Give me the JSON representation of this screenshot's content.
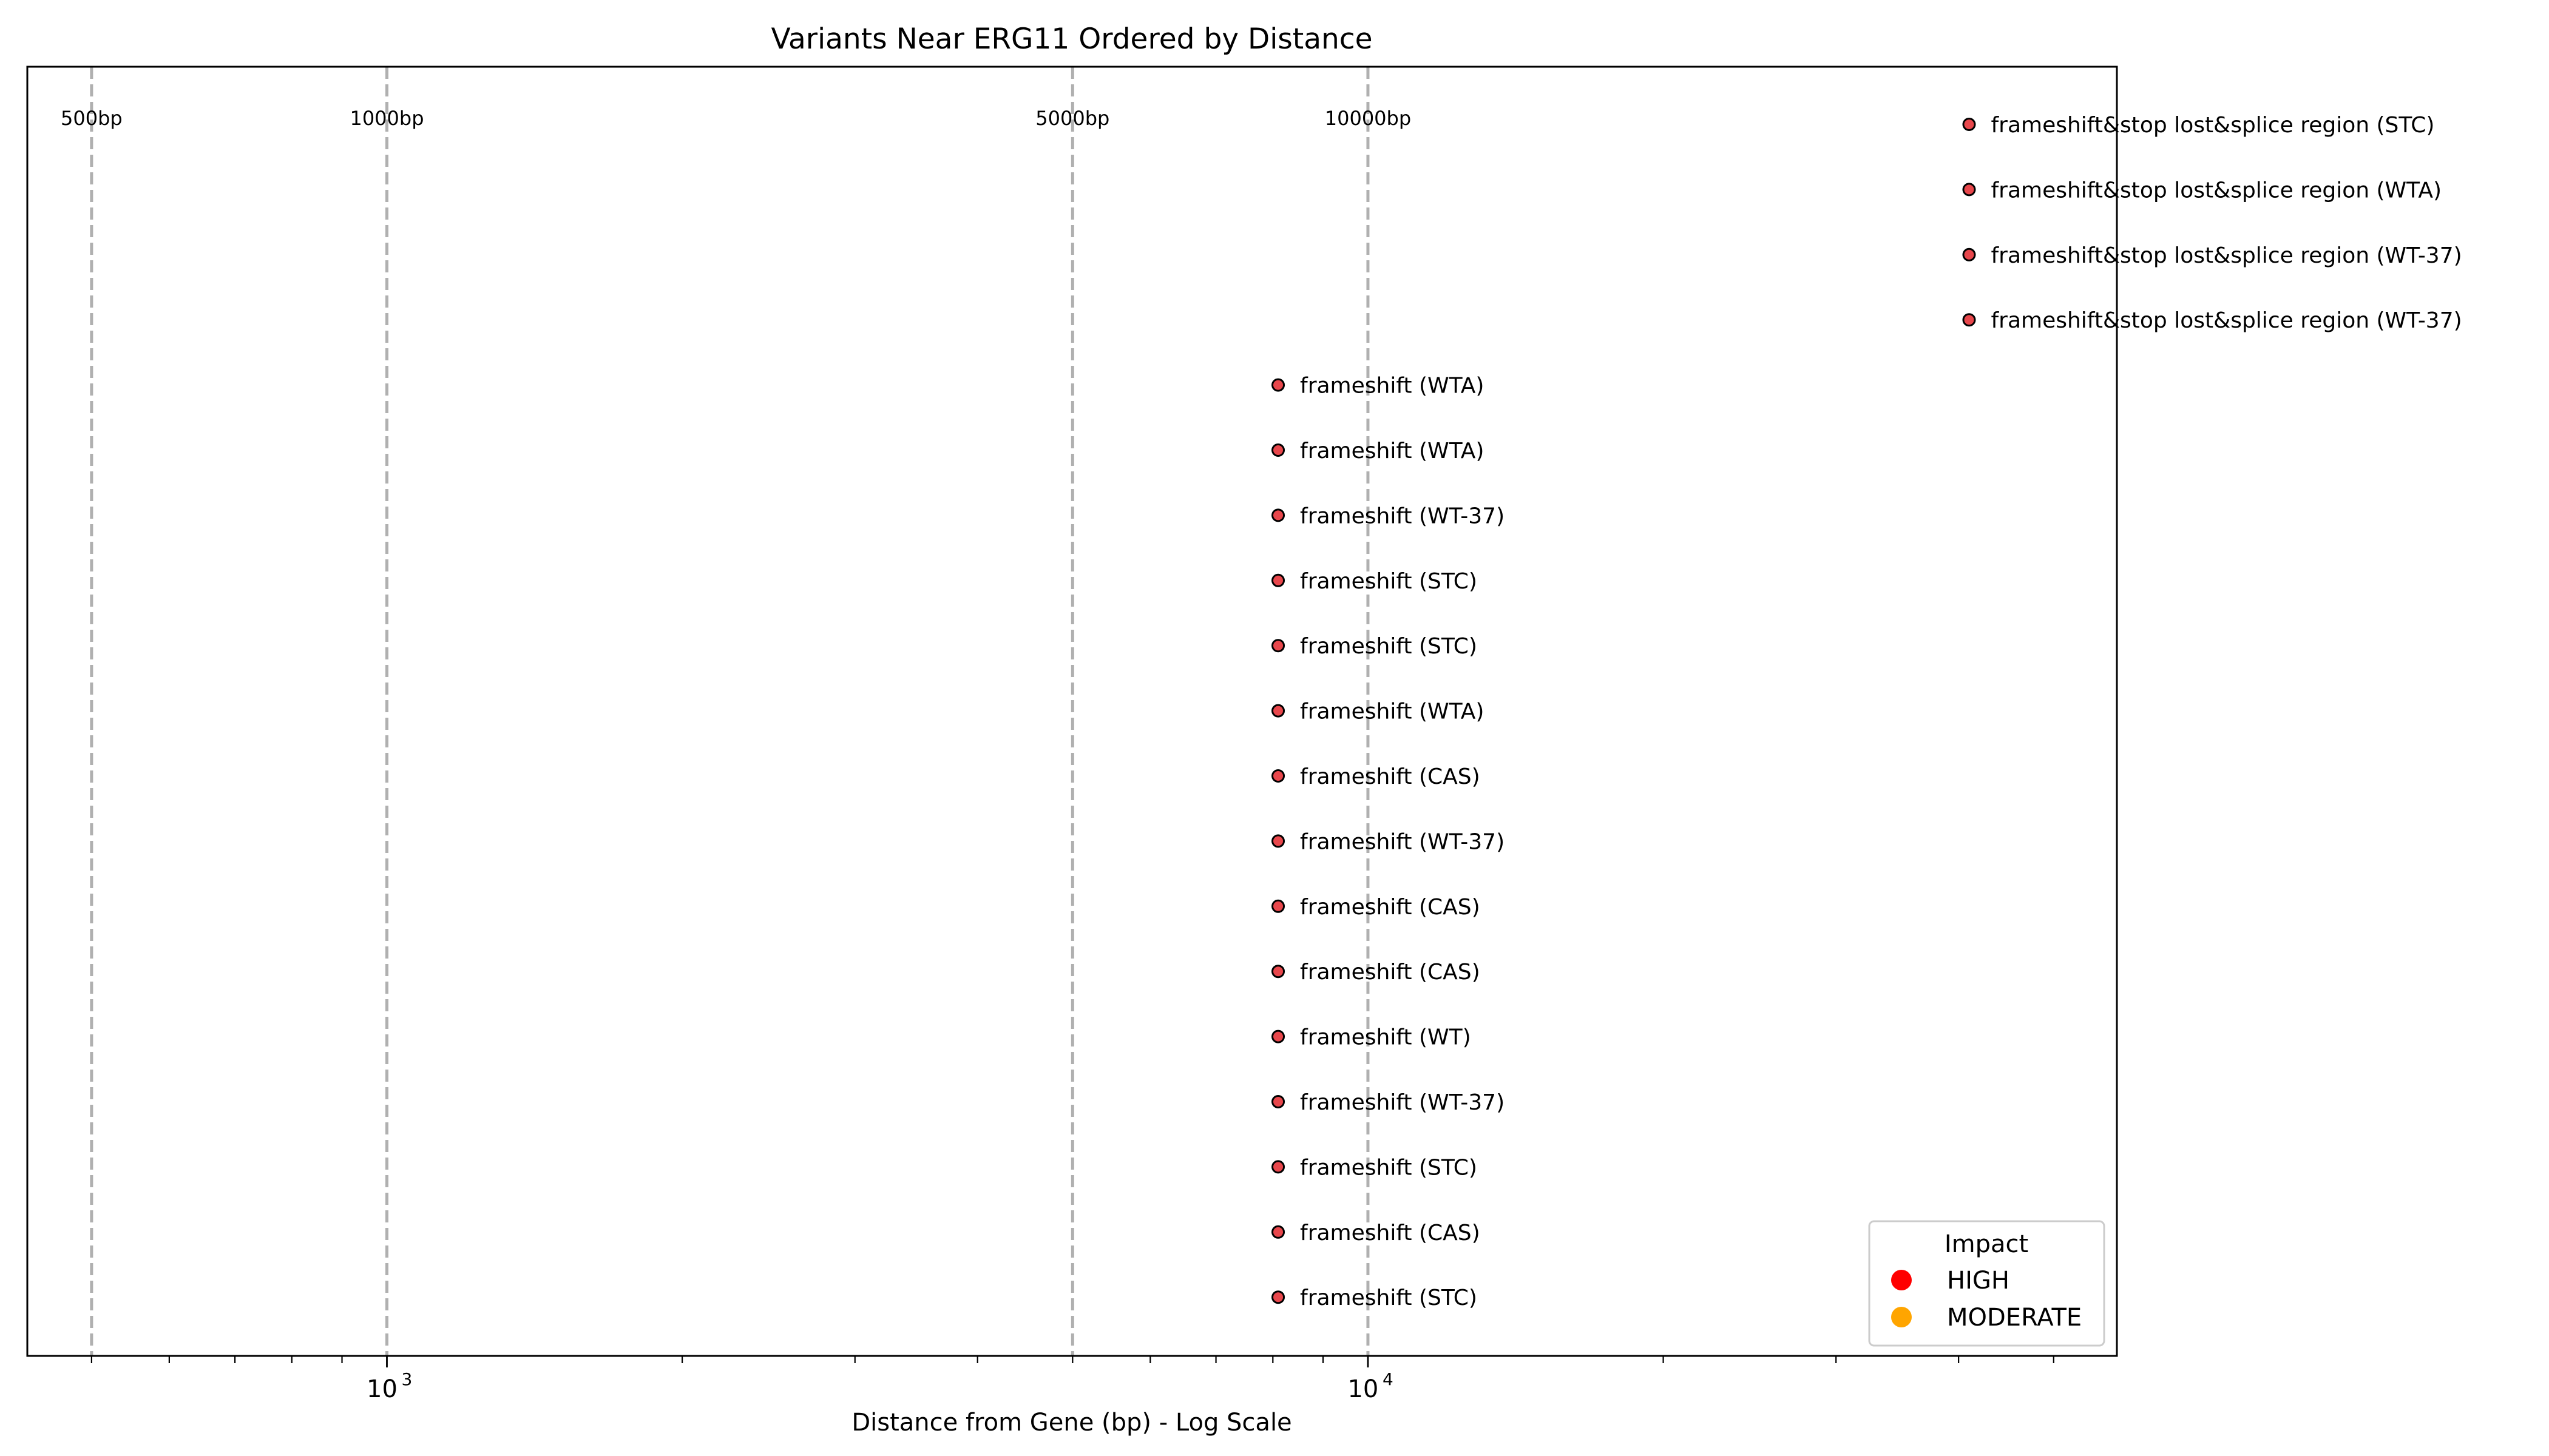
{
  "chart_data": {
    "type": "scatter",
    "title": "Variants Near ERG11 Ordered by Distance",
    "xlabel": "Distance from Gene (bp) - Log Scale",
    "ylabel": "",
    "x_scale": "log",
    "xlim": [
      430,
      58000
    ],
    "x_major_ticks": [
      {
        "value": 1000,
        "base": "10",
        "exp": "3"
      },
      {
        "value": 10000,
        "base": "10",
        "exp": "4"
      }
    ],
    "reference_lines": [
      {
        "x": 500,
        "label": "500bp"
      },
      {
        "x": 1000,
        "label": "1000bp"
      },
      {
        "x": 5000,
        "label": "5000bp"
      },
      {
        "x": 10000,
        "label": "10000bp"
      }
    ],
    "points": [
      {
        "x": 41000,
        "label": "frameshift&stop lost&splice region (STC)",
        "impact": "HIGH"
      },
      {
        "x": 41000,
        "label": "frameshift&stop lost&splice region (WTA)",
        "impact": "HIGH"
      },
      {
        "x": 41000,
        "label": "frameshift&stop lost&splice region (WT-37)",
        "impact": "HIGH"
      },
      {
        "x": 41000,
        "label": "frameshift&stop lost&splice region (WT-37)",
        "impact": "HIGH"
      },
      {
        "x": 8100,
        "label": "frameshift (WTA)",
        "impact": "HIGH"
      },
      {
        "x": 8100,
        "label": "frameshift (WTA)",
        "impact": "HIGH"
      },
      {
        "x": 8100,
        "label": "frameshift (WT-37)",
        "impact": "HIGH"
      },
      {
        "x": 8100,
        "label": "frameshift (STC)",
        "impact": "HIGH"
      },
      {
        "x": 8100,
        "label": "frameshift (STC)",
        "impact": "HIGH"
      },
      {
        "x": 8100,
        "label": "frameshift (WTA)",
        "impact": "HIGH"
      },
      {
        "x": 8100,
        "label": "frameshift (CAS)",
        "impact": "HIGH"
      },
      {
        "x": 8100,
        "label": "frameshift (WT-37)",
        "impact": "HIGH"
      },
      {
        "x": 8100,
        "label": "frameshift (CAS)",
        "impact": "HIGH"
      },
      {
        "x": 8100,
        "label": "frameshift (CAS)",
        "impact": "HIGH"
      },
      {
        "x": 8100,
        "label": "frameshift (WT)",
        "impact": "HIGH"
      },
      {
        "x": 8100,
        "label": "frameshift (WT-37)",
        "impact": "HIGH"
      },
      {
        "x": 8100,
        "label": "frameshift (STC)",
        "impact": "HIGH"
      },
      {
        "x": 8100,
        "label": "frameshift (CAS)",
        "impact": "HIGH"
      },
      {
        "x": 8100,
        "label": "frameshift (STC)",
        "impact": "HIGH"
      }
    ],
    "legend": {
      "title": "Impact",
      "placement": "lower-right",
      "entries": [
        {
          "label": "HIGH",
          "color": "#ff0000"
        },
        {
          "label": "MODERATE",
          "color": "#ffa500"
        }
      ]
    },
    "grid": false,
    "colors": {
      "point_fill": "#e8474c",
      "point_edge": "#000000",
      "reference_line": "#b0b0b0",
      "axes": "#000000"
    }
  }
}
